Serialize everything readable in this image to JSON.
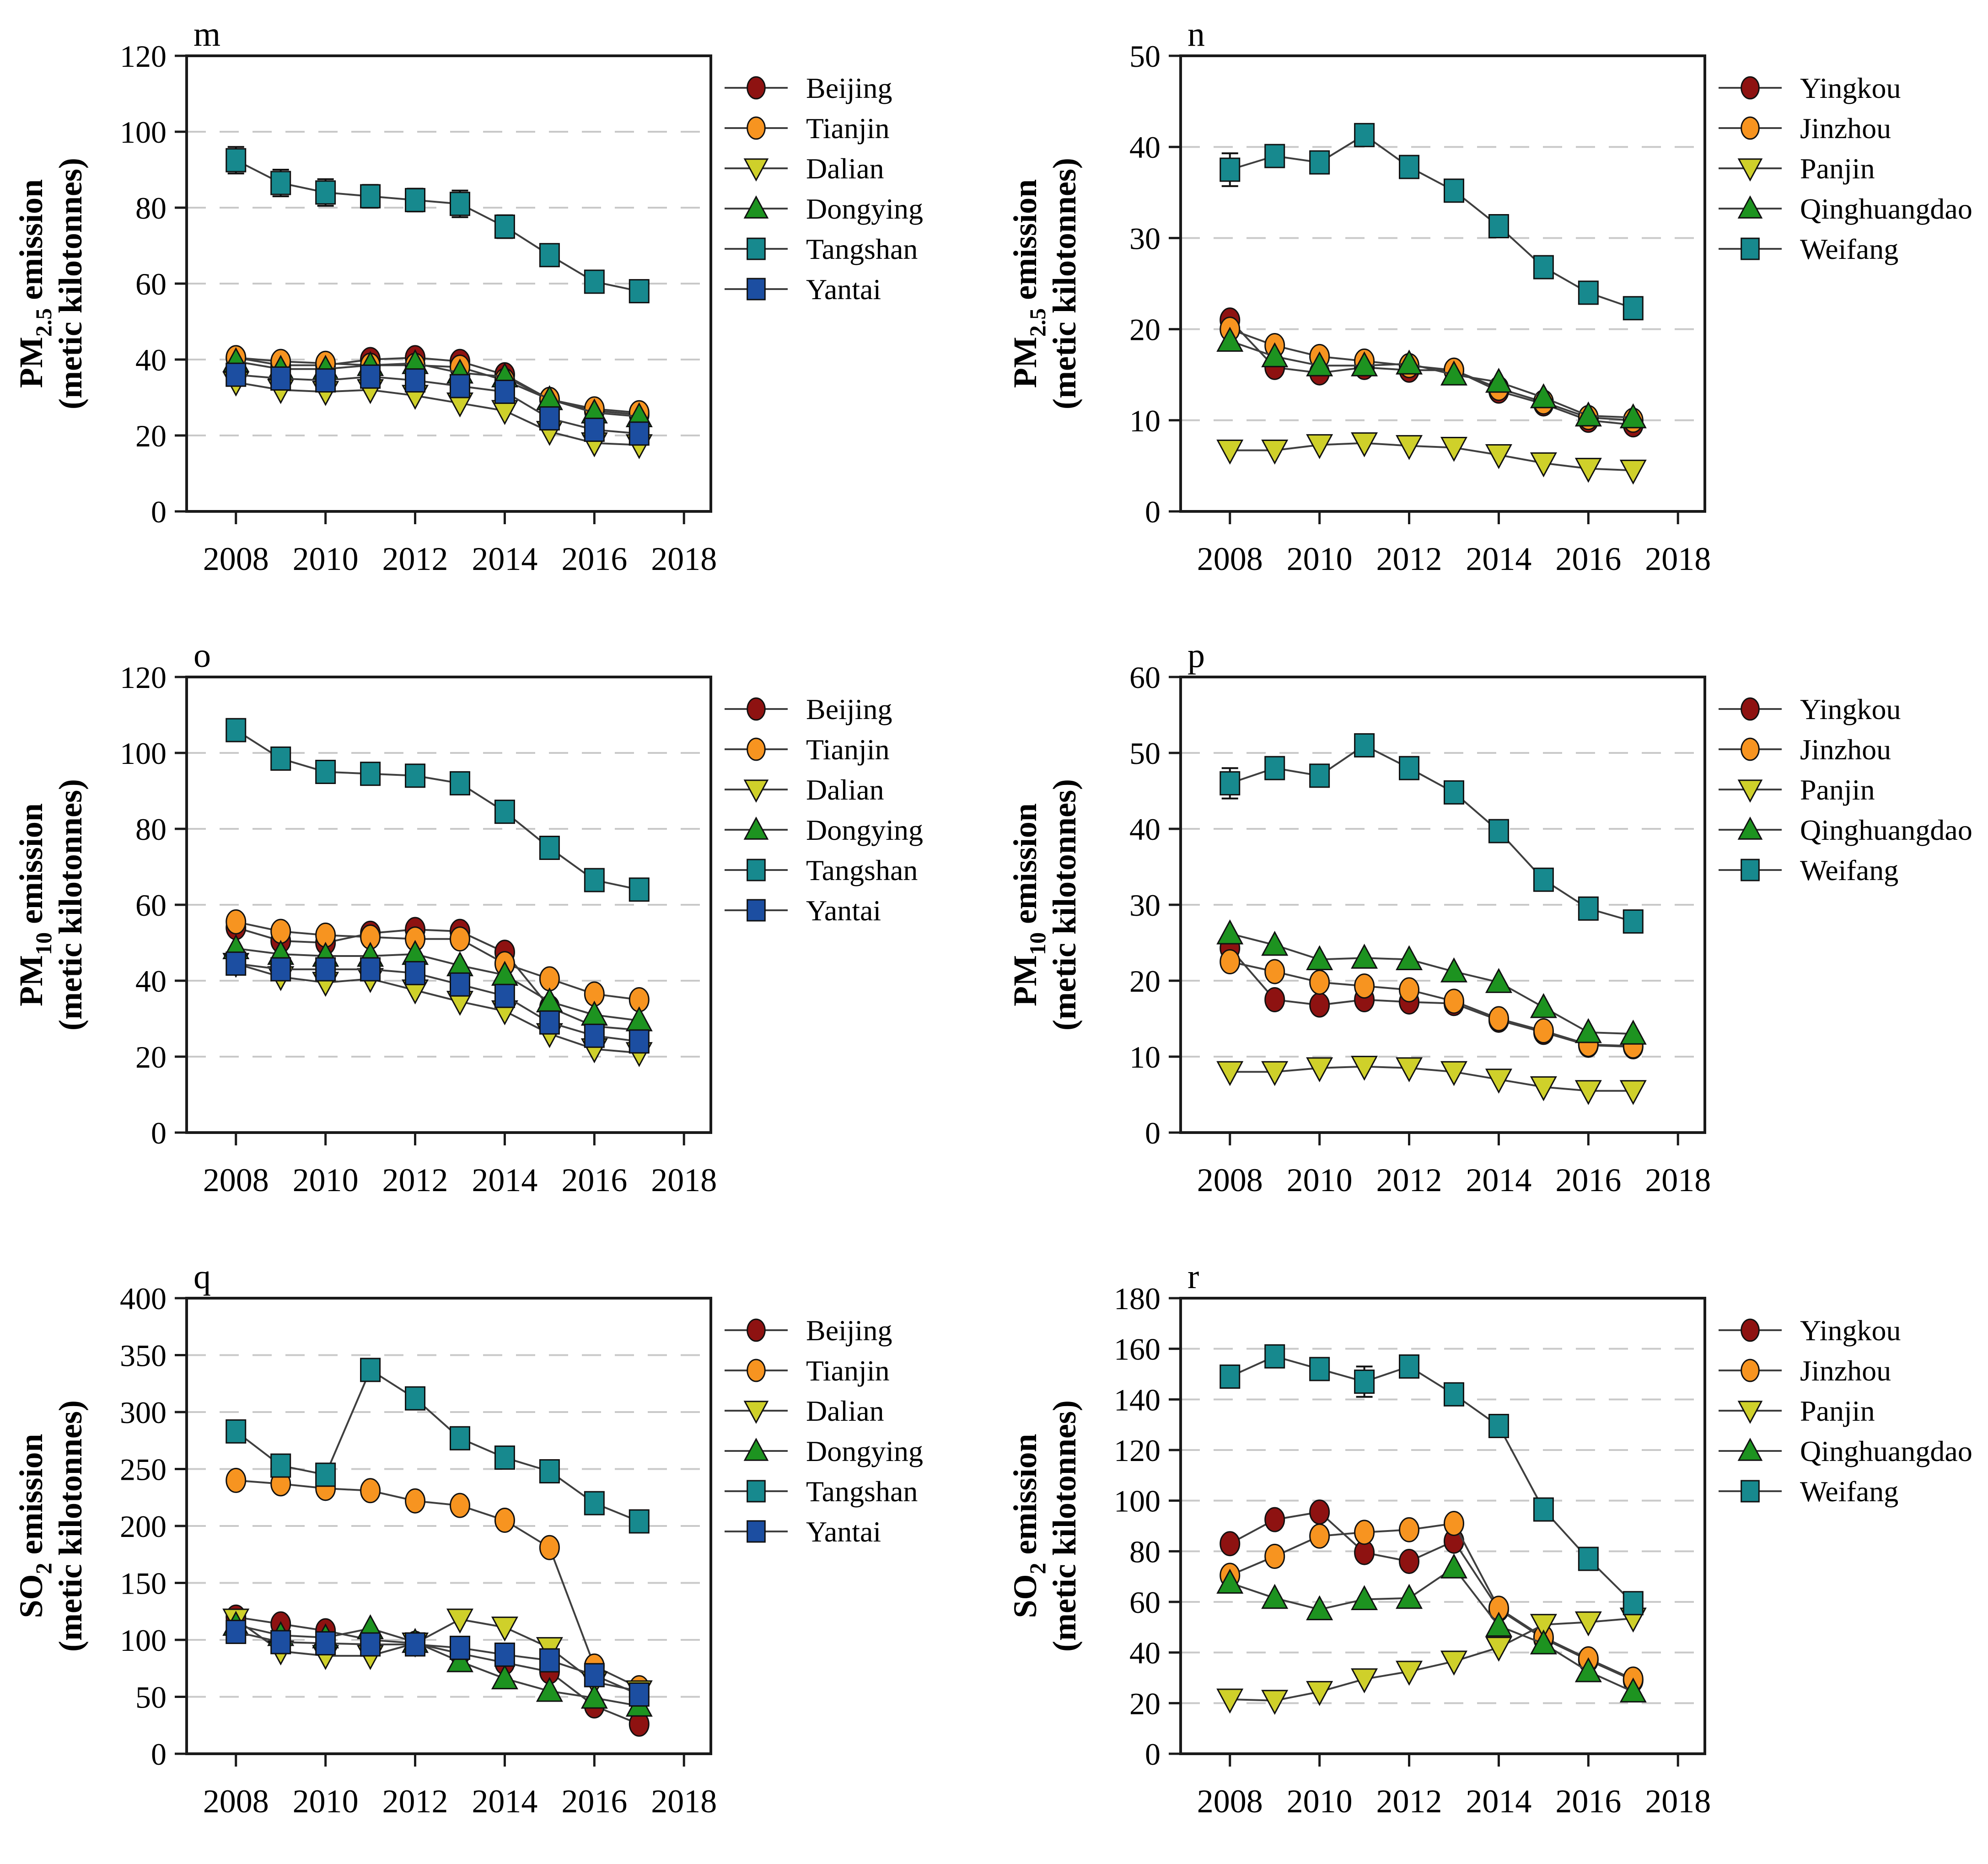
{
  "figure": {
    "background": "#ffffff",
    "columns": 2,
    "rows": 3,
    "line_color": "#3f3f3f",
    "grid_color": "#c9c9c9",
    "frame_color": "#1a1a1a",
    "series_colors": {
      "maroon": "#8e1211",
      "orange": "#f79420",
      "yellow_green": "#cfd02a",
      "green": "#1d9320",
      "teal": "#17898e",
      "blue": "#1c4ea1"
    }
  },
  "chart_data": [
    {
      "id": "m",
      "type": "line",
      "letter": "m",
      "ylabel": {
        "pre": "PM",
        "sub": "2.5",
        "post": " emission",
        "line2": "(metic kilotonnes)"
      },
      "ylim": [
        0,
        120
      ],
      "yticks": [
        0,
        20,
        40,
        60,
        80,
        100,
        120
      ],
      "xlim": [
        2006.9,
        2018.6
      ],
      "xticks": [
        2008,
        2010,
        2012,
        2014,
        2016,
        2018
      ],
      "years": [
        2008,
        2009,
        2010,
        2011,
        2012,
        2013,
        2014,
        2015,
        2016,
        2017
      ],
      "legend_position": "right",
      "grid": true,
      "series": [
        {
          "name": "Beijing",
          "color": "#8e1211",
          "marker": "circle",
          "values": [
            40.5,
            38.5,
            38.5,
            40,
            40.5,
            39.5,
            36,
            29.5,
            26.5,
            25.5
          ]
        },
        {
          "name": "Tianjin",
          "color": "#f79420",
          "marker": "circle",
          "values": [
            40.5,
            39.5,
            39,
            38.5,
            38.5,
            38,
            34.5,
            29.5,
            27,
            26
          ]
        },
        {
          "name": "Dalian",
          "color": "#cfd02a",
          "marker": "triangle-down",
          "values": [
            34,
            32,
            31.5,
            32,
            30.5,
            28.5,
            26.5,
            21,
            18,
            17.5
          ]
        },
        {
          "name": "Dongying",
          "color": "#1d9320",
          "marker": "triangle-up",
          "values": [
            39.5,
            37.5,
            37.5,
            38.5,
            39,
            36.5,
            35.5,
            29.5,
            26,
            25
          ]
        },
        {
          "name": "Tangshan",
          "color": "#17898e",
          "marker": "square",
          "values": [
            92.5,
            86.5,
            84,
            83,
            82,
            81,
            75,
            67.5,
            60.5,
            58
          ],
          "err": [
            3.5,
            3.5,
            3.5,
            3,
            3,
            3.5,
            3,
            2.5,
            2.5,
            2
          ]
        },
        {
          "name": "Yantai",
          "color": "#1c4ea1",
          "marker": "square",
          "values": [
            36,
            35,
            34.5,
            35.5,
            34.5,
            33,
            31.5,
            24.5,
            21.5,
            20.5
          ]
        }
      ]
    },
    {
      "id": "n",
      "type": "line",
      "letter": "n",
      "ylabel": {
        "pre": "PM",
        "sub": "2.5",
        "post": " emission",
        "line2": "(metic kilotonnes)"
      },
      "ylim": [
        0,
        50
      ],
      "yticks": [
        0,
        10,
        20,
        30,
        40,
        50
      ],
      "xlim": [
        2006.9,
        2018.6
      ],
      "xticks": [
        2008,
        2010,
        2012,
        2014,
        2016,
        2018
      ],
      "years": [
        2008,
        2009,
        2010,
        2011,
        2012,
        2013,
        2014,
        2015,
        2016,
        2017
      ],
      "legend_position": "right",
      "grid": true,
      "series": [
        {
          "name": "Yingkou",
          "color": "#8e1211",
          "marker": "circle",
          "values": [
            21,
            15.8,
            15.2,
            15.8,
            15.5,
            15.5,
            13.2,
            11.8,
            10,
            9.5
          ]
        },
        {
          "name": "Jinzhou",
          "color": "#f79420",
          "marker": "circle",
          "values": [
            20,
            18.2,
            17,
            16.5,
            16,
            15.5,
            13.5,
            12,
            10.3,
            10
          ]
        },
        {
          "name": "Panjin",
          "color": "#cfd02a",
          "marker": "triangle-down",
          "values": [
            6.7,
            6.7,
            7.3,
            7.5,
            7.2,
            7,
            6.2,
            5.3,
            4.7,
            4.5
          ]
        },
        {
          "name": "Qinghuangdao",
          "color": "#1d9320",
          "marker": "triangle-up",
          "values": [
            18.7,
            17,
            16,
            16,
            16.2,
            15,
            14.2,
            12.5,
            10.5,
            10.3
          ]
        },
        {
          "name": "Weifang",
          "color": "#17898e",
          "marker": "square",
          "values": [
            37.5,
            39,
            38.3,
            41.3,
            37.8,
            35.2,
            31.3,
            26.8,
            24,
            22.3
          ],
          "err": [
            1.8,
            1,
            1,
            0.8,
            0.8,
            0.6,
            0.5,
            0.5,
            0.5,
            0.5
          ]
        }
      ]
    },
    {
      "id": "o",
      "type": "line",
      "letter": "o",
      "ylabel": {
        "pre": "PM",
        "sub": "10",
        "post": " emission",
        "line2": "(metic kilotonnes)"
      },
      "ylim": [
        0,
        120
      ],
      "yticks": [
        0,
        20,
        40,
        60,
        80,
        100,
        120
      ],
      "xlim": [
        2006.9,
        2018.6
      ],
      "xticks": [
        2008,
        2010,
        2012,
        2014,
        2016,
        2018
      ],
      "years": [
        2008,
        2009,
        2010,
        2011,
        2012,
        2013,
        2014,
        2015,
        2016,
        2017
      ],
      "legend_position": "right",
      "grid": true,
      "series": [
        {
          "name": "Beijing",
          "color": "#8e1211",
          "marker": "circle",
          "values": [
            54,
            50.5,
            50,
            52.5,
            53.5,
            53,
            47.5,
            33,
            28,
            27
          ]
        },
        {
          "name": "Tianjin",
          "color": "#f79420",
          "marker": "circle",
          "values": [
            55.5,
            53,
            52,
            51.5,
            51,
            51,
            44.5,
            40.5,
            36.5,
            35
          ]
        },
        {
          "name": "Dalian",
          "color": "#cfd02a",
          "marker": "triangle-down",
          "values": [
            44.5,
            41,
            39.5,
            40.5,
            37.5,
            34.5,
            32,
            26,
            22,
            21
          ]
        },
        {
          "name": "Dongying",
          "color": "#1d9320",
          "marker": "triangle-up",
          "values": [
            48.5,
            47,
            46.5,
            46.5,
            47,
            44,
            41.5,
            34.5,
            31,
            29.5
          ]
        },
        {
          "name": "Tangshan",
          "color": "#17898e",
          "marker": "square",
          "values": [
            106,
            98.5,
            95,
            94.5,
            94,
            92,
            84.5,
            75,
            66.5,
            64
          ],
          "err": [
            2.5,
            2,
            1.5,
            1.5,
            1.5,
            1.5,
            1.2,
            1,
            1,
            1
          ]
        },
        {
          "name": "Yantai",
          "color": "#1c4ea1",
          "marker": "square",
          "values": [
            44.5,
            43,
            43,
            43,
            42,
            39,
            36,
            29,
            25.5,
            24
          ]
        }
      ]
    },
    {
      "id": "p",
      "type": "line",
      "letter": "p",
      "ylabel": {
        "pre": "PM",
        "sub": "10",
        "post": " emission",
        "line2": "(metic kilotonnes)"
      },
      "ylim": [
        0,
        60
      ],
      "yticks": [
        0,
        10,
        20,
        30,
        40,
        50,
        60
      ],
      "xlim": [
        2006.9,
        2018.6
      ],
      "xticks": [
        2008,
        2010,
        2012,
        2014,
        2016,
        2018
      ],
      "years": [
        2008,
        2009,
        2010,
        2011,
        2012,
        2013,
        2014,
        2015,
        2016,
        2017
      ],
      "legend_position": "right",
      "grid": true,
      "series": [
        {
          "name": "Yingkou",
          "color": "#8e1211",
          "marker": "circle",
          "values": [
            24.3,
            17.5,
            16.8,
            17.5,
            17.2,
            17,
            14.8,
            13.2,
            11.5,
            11.3
          ]
        },
        {
          "name": "Jinzhou",
          "color": "#f79420",
          "marker": "circle",
          "values": [
            22.5,
            21.2,
            19.8,
            19.3,
            18.8,
            17.3,
            15,
            13.4,
            11.6,
            11.4
          ]
        },
        {
          "name": "Panjin",
          "color": "#cfd02a",
          "marker": "triangle-down",
          "values": [
            8,
            8,
            8.5,
            8.7,
            8.5,
            8,
            7,
            6,
            5.5,
            5.5
          ]
        },
        {
          "name": "Qinghuangdao",
          "color": "#1d9320",
          "marker": "triangle-up",
          "values": [
            26.2,
            24.7,
            22.8,
            23,
            22.8,
            21.2,
            19.8,
            16.5,
            13.2,
            13
          ]
        },
        {
          "name": "Weifang",
          "color": "#17898e",
          "marker": "square",
          "values": [
            46,
            48,
            47,
            51,
            48,
            44.8,
            39.7,
            33.3,
            29.5,
            27.8
          ],
          "err": [
            2,
            1,
            0.8,
            0.8,
            0.8,
            0.8,
            0.6,
            0.5,
            0.5,
            0.5
          ]
        }
      ]
    },
    {
      "id": "q",
      "type": "line",
      "letter": "q",
      "ylabel": {
        "pre": "SO",
        "sub": "2",
        "post": " emission",
        "line2": "(metic kilotonnes)"
      },
      "ylim": [
        0,
        400
      ],
      "yticks": [
        0,
        50,
        100,
        150,
        200,
        250,
        300,
        350,
        400
      ],
      "xlim": [
        2006.9,
        2018.6
      ],
      "xticks": [
        2008,
        2010,
        2012,
        2014,
        2016,
        2018
      ],
      "years": [
        2008,
        2009,
        2010,
        2011,
        2012,
        2013,
        2014,
        2015,
        2016,
        2017
      ],
      "legend_position": "right",
      "grid": true,
      "series": [
        {
          "name": "Beijing",
          "color": "#8e1211",
          "marker": "circle",
          "values": [
            120,
            114,
            108,
            100,
            97,
            88,
            80,
            72,
            42,
            26
          ]
        },
        {
          "name": "Tianjin",
          "color": "#f79420",
          "marker": "circle",
          "values": [
            240,
            237,
            233,
            231,
            222,
            218,
            205,
            181,
            77,
            58
          ]
        },
        {
          "name": "Dalian",
          "color": "#cfd02a",
          "marker": "triangle-down",
          "values": [
            118,
            90,
            86,
            86,
            97,
            118,
            111,
            93,
            63,
            55
          ]
        },
        {
          "name": "Dongying",
          "color": "#1d9320",
          "marker": "triangle-up",
          "values": [
            113,
            104,
            102,
            110,
            98,
            81,
            66,
            55,
            49,
            42
          ]
        },
        {
          "name": "Tangshan",
          "color": "#17898e",
          "marker": "square",
          "values": [
            283,
            253,
            245,
            337,
            312,
            277,
            260,
            248,
            220,
            204
          ]
        },
        {
          "name": "Yantai",
          "color": "#1c4ea1",
          "marker": "square",
          "values": [
            107,
            98,
            97,
            96,
            96,
            93,
            87,
            82,
            69,
            52
          ]
        }
      ]
    },
    {
      "id": "r",
      "type": "line",
      "letter": "r",
      "ylabel": {
        "pre": "SO",
        "sub": "2",
        "post": " emission",
        "line2": "(metic kilotonnes)"
      },
      "ylim": [
        0,
        180
      ],
      "yticks": [
        0,
        20,
        40,
        60,
        80,
        100,
        120,
        140,
        160,
        180
      ],
      "xlim": [
        2006.9,
        2018.6
      ],
      "xticks": [
        2008,
        2010,
        2012,
        2014,
        2016,
        2018
      ],
      "years": [
        2008,
        2009,
        2010,
        2011,
        2012,
        2013,
        2014,
        2015,
        2016,
        2017
      ],
      "legend_position": "right",
      "grid": true,
      "series": [
        {
          "name": "Yingkou",
          "color": "#8e1211",
          "marker": "circle",
          "values": [
            83,
            92.5,
            95.5,
            79.5,
            76,
            84,
            57,
            45.5,
            37,
            29
          ]
        },
        {
          "name": "Jinzhou",
          "color": "#f79420",
          "marker": "circle",
          "values": [
            70.5,
            78,
            86,
            87.5,
            88.5,
            91,
            57.5,
            46,
            37.5,
            29.5
          ]
        },
        {
          "name": "Panjin",
          "color": "#cfd02a",
          "marker": "triangle-down",
          "values": [
            21.5,
            21,
            24.5,
            29.5,
            32.5,
            36.5,
            42,
            51,
            52,
            53.5
          ]
        },
        {
          "name": "Qinghuangdao",
          "color": "#1d9320",
          "marker": "triangle-up",
          "values": [
            67.5,
            61.5,
            57,
            61,
            61.5,
            73.5,
            50.5,
            43.5,
            32.5,
            24.5
          ]
        },
        {
          "name": "Weifang",
          "color": "#17898e",
          "marker": "square",
          "values": [
            149,
            157,
            152,
            147,
            153,
            142,
            129.5,
            96.5,
            77,
            59.5
          ],
          "err": [
            2,
            2,
            2,
            6,
            2,
            2,
            1.5,
            1.5,
            1,
            1
          ]
        }
      ]
    }
  ]
}
